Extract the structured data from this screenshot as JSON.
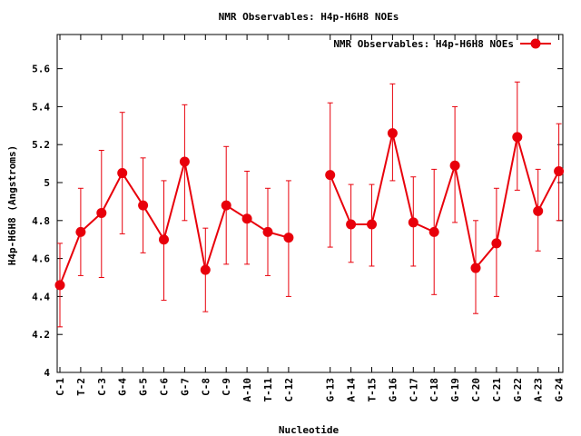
{
  "chart_data": {
    "type": "line",
    "title": "NMR Observables: H4p-H6H8 NOEs",
    "xlabel": "Nucleotide",
    "ylabel": "H4p-H6H8 (Angstroms)",
    "ylim": [
      4.0,
      5.78
    ],
    "yticks": [
      4,
      4.2,
      4.4,
      4.6,
      4.8,
      5,
      5.2,
      5.4,
      5.6
    ],
    "ytick_labels": [
      "4",
      "4.2",
      "4.4",
      "4.6",
      "4.8",
      "5",
      "5.2",
      "5.4",
      "5.6"
    ],
    "grid": false,
    "legend_position": "top-right",
    "color": "#e8000b",
    "series": [
      {
        "name": "NMR Observables: H4p-H6H8 NOEs",
        "segments": [
          [
            {
              "x": "C-1",
              "y": 4.46,
              "lo": 4.24,
              "hi": 4.68
            },
            {
              "x": "T-2",
              "y": 4.74,
              "lo": 4.51,
              "hi": 4.97
            },
            {
              "x": "C-3",
              "y": 4.84,
              "lo": 4.5,
              "hi": 5.17
            },
            {
              "x": "G-4",
              "y": 5.05,
              "lo": 4.73,
              "hi": 5.37
            },
            {
              "x": "G-5",
              "y": 4.88,
              "lo": 4.63,
              "hi": 5.13
            },
            {
              "x": "C-6",
              "y": 4.7,
              "lo": 4.38,
              "hi": 5.01
            },
            {
              "x": "G-7",
              "y": 5.11,
              "lo": 4.8,
              "hi": 5.41
            },
            {
              "x": "C-8",
              "y": 4.54,
              "lo": 4.32,
              "hi": 4.76
            },
            {
              "x": "C-9",
              "y": 4.88,
              "lo": 4.57,
              "hi": 5.19
            },
            {
              "x": "A-10",
              "y": 4.81,
              "lo": 4.57,
              "hi": 5.06
            },
            {
              "x": "T-11",
              "y": 4.74,
              "lo": 4.51,
              "hi": 4.97
            },
            {
              "x": "C-12",
              "y": 4.71,
              "lo": 4.4,
              "hi": 5.01
            }
          ],
          [
            {
              "x": "G-13",
              "y": 5.04,
              "lo": 4.66,
              "hi": 5.42
            },
            {
              "x": "A-14",
              "y": 4.78,
              "lo": 4.58,
              "hi": 4.99
            },
            {
              "x": "T-15",
              "y": 4.78,
              "lo": 4.56,
              "hi": 4.99
            },
            {
              "x": "G-16",
              "y": 5.26,
              "lo": 5.01,
              "hi": 5.52
            },
            {
              "x": "C-17",
              "y": 4.79,
              "lo": 4.56,
              "hi": 5.03
            },
            {
              "x": "C-18",
              "y": 4.74,
              "lo": 4.41,
              "hi": 5.07
            },
            {
              "x": "G-19",
              "y": 5.09,
              "lo": 4.79,
              "hi": 5.4
            },
            {
              "x": "C-20",
              "y": 4.55,
              "lo": 4.31,
              "hi": 4.8
            },
            {
              "x": "C-21",
              "y": 4.68,
              "lo": 4.4,
              "hi": 4.97
            },
            {
              "x": "G-22",
              "y": 5.24,
              "lo": 4.96,
              "hi": 5.53
            },
            {
              "x": "A-23",
              "y": 4.85,
              "lo": 4.64,
              "hi": 5.07
            },
            {
              "x": "G-24",
              "y": 5.06,
              "lo": 4.8,
              "hi": 5.31
            }
          ]
        ]
      }
    ],
    "categories": [
      "C-1",
      "T-2",
      "C-3",
      "G-4",
      "G-5",
      "C-6",
      "G-7",
      "C-8",
      "C-9",
      "A-10",
      "T-11",
      "C-12",
      "",
      "G-13",
      "A-14",
      "T-15",
      "G-16",
      "C-17",
      "C-18",
      "G-19",
      "C-20",
      "C-21",
      "G-22",
      "A-23",
      "G-24"
    ]
  }
}
